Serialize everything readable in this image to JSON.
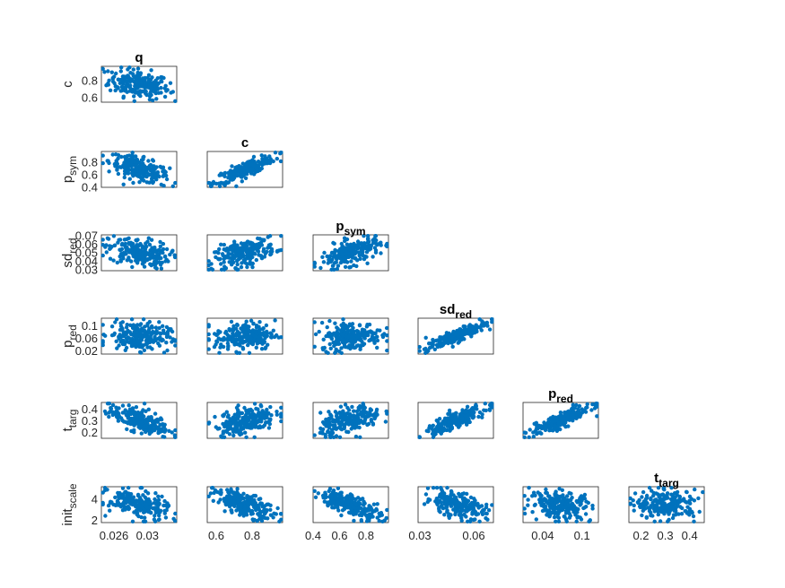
{
  "chart_data": {
    "type": "scatter",
    "layout": "lower-triangular scatter-plot matrix",
    "marker_color": "#0072BD",
    "grid": false,
    "variables": [
      {
        "key": "q",
        "title": "q",
        "label_main": "q",
        "label_sub": "",
        "range": [
          0.0245,
          0.0335
        ],
        "ticks": [
          0.026,
          0.03
        ],
        "tick_labels": [
          "0.026",
          "0.03"
        ]
      },
      {
        "key": "c",
        "title": "c",
        "label_main": "c",
        "label_sub": "",
        "range": [
          0.55,
          0.97
        ],
        "ticks": [
          0.6,
          0.8
        ],
        "tick_labels": [
          "0.6",
          "0.8"
        ]
      },
      {
        "key": "p_sym",
        "title": "p",
        "title_sub": "sym",
        "label_main": "p",
        "label_sub": "sym",
        "range": [
          0.4,
          0.97
        ],
        "ticks": [
          0.4,
          0.6,
          0.8
        ],
        "tick_labels": [
          "0.4",
          "0.6",
          "0.8"
        ]
      },
      {
        "key": "sd_red",
        "title": "sd",
        "title_sub": "red",
        "label_main": "sd",
        "label_sub": "red",
        "range": [
          0.029,
          0.071
        ],
        "ticks": [
          0.03,
          0.04,
          0.05,
          0.06,
          0.07
        ],
        "tick_labels": [
          "0.03",
          "0.04",
          "0.05",
          "0.06",
          "0.07"
        ],
        "x_ticks": [
          0.03,
          0.06
        ],
        "x_tick_labels": [
          "0.03",
          "0.06"
        ]
      },
      {
        "key": "p_red",
        "title": "p",
        "title_sub": "red",
        "label_main": "p",
        "label_sub": "red",
        "range": [
          0.01,
          0.125
        ],
        "ticks": [
          0.02,
          0.06,
          0.1
        ],
        "tick_labels": [
          "0.02",
          "0.06",
          "0.1"
        ],
        "x_ticks": [
          0.04,
          0.1
        ],
        "x_tick_labels": [
          "0.04",
          "0.1"
        ]
      },
      {
        "key": "t_targ",
        "title": "t",
        "title_sub": "targ",
        "label_main": "t",
        "label_sub": "targ",
        "range": [
          0.15,
          0.46
        ],
        "ticks": [
          0.2,
          0.3,
          0.4
        ],
        "tick_labels": [
          "0.2",
          "0.3",
          "0.4"
        ]
      },
      {
        "key": "init_scale",
        "title": "init",
        "title_sub": "scale",
        "label_main": "init",
        "label_sub": "scale",
        "range": [
          1.8,
          5.2
        ],
        "ticks": [
          2,
          4
        ],
        "tick_labels": [
          "2",
          "4"
        ]
      }
    ],
    "panels": [
      {
        "x": "q",
        "y": "c",
        "correlation": -0.3
      },
      {
        "x": "q",
        "y": "p_sym",
        "correlation": -0.6
      },
      {
        "x": "c",
        "y": "p_sym",
        "correlation": 0.85
      },
      {
        "x": "q",
        "y": "sd_red",
        "correlation": -0.3
      },
      {
        "x": "c",
        "y": "sd_red",
        "correlation": 0.5
      },
      {
        "x": "p_sym",
        "y": "sd_red",
        "correlation": 0.55
      },
      {
        "x": "q",
        "y": "p_red",
        "correlation": -0.1
      },
      {
        "x": "c",
        "y": "p_red",
        "correlation": 0.1
      },
      {
        "x": "p_sym",
        "y": "p_red",
        "correlation": 0.05
      },
      {
        "x": "sd_red",
        "y": "p_red",
        "correlation": 0.9
      },
      {
        "x": "q",
        "y": "t_targ",
        "correlation": -0.6
      },
      {
        "x": "c",
        "y": "t_targ",
        "correlation": 0.4
      },
      {
        "x": "p_sym",
        "y": "t_targ",
        "correlation": 0.45
      },
      {
        "x": "sd_red",
        "y": "t_targ",
        "correlation": 0.85
      },
      {
        "x": "p_red",
        "y": "t_targ",
        "correlation": 0.85
      },
      {
        "x": "q",
        "y": "init_scale",
        "correlation": -0.4
      },
      {
        "x": "c",
        "y": "init_scale",
        "correlation": -0.65
      },
      {
        "x": "p_sym",
        "y": "init_scale",
        "correlation": -0.7
      },
      {
        "x": "sd_red",
        "y": "init_scale",
        "correlation": -0.5
      },
      {
        "x": "p_red",
        "y": "init_scale",
        "correlation": -0.2
      },
      {
        "x": "t_targ",
        "y": "init_scale",
        "correlation": 0.0
      }
    ]
  }
}
